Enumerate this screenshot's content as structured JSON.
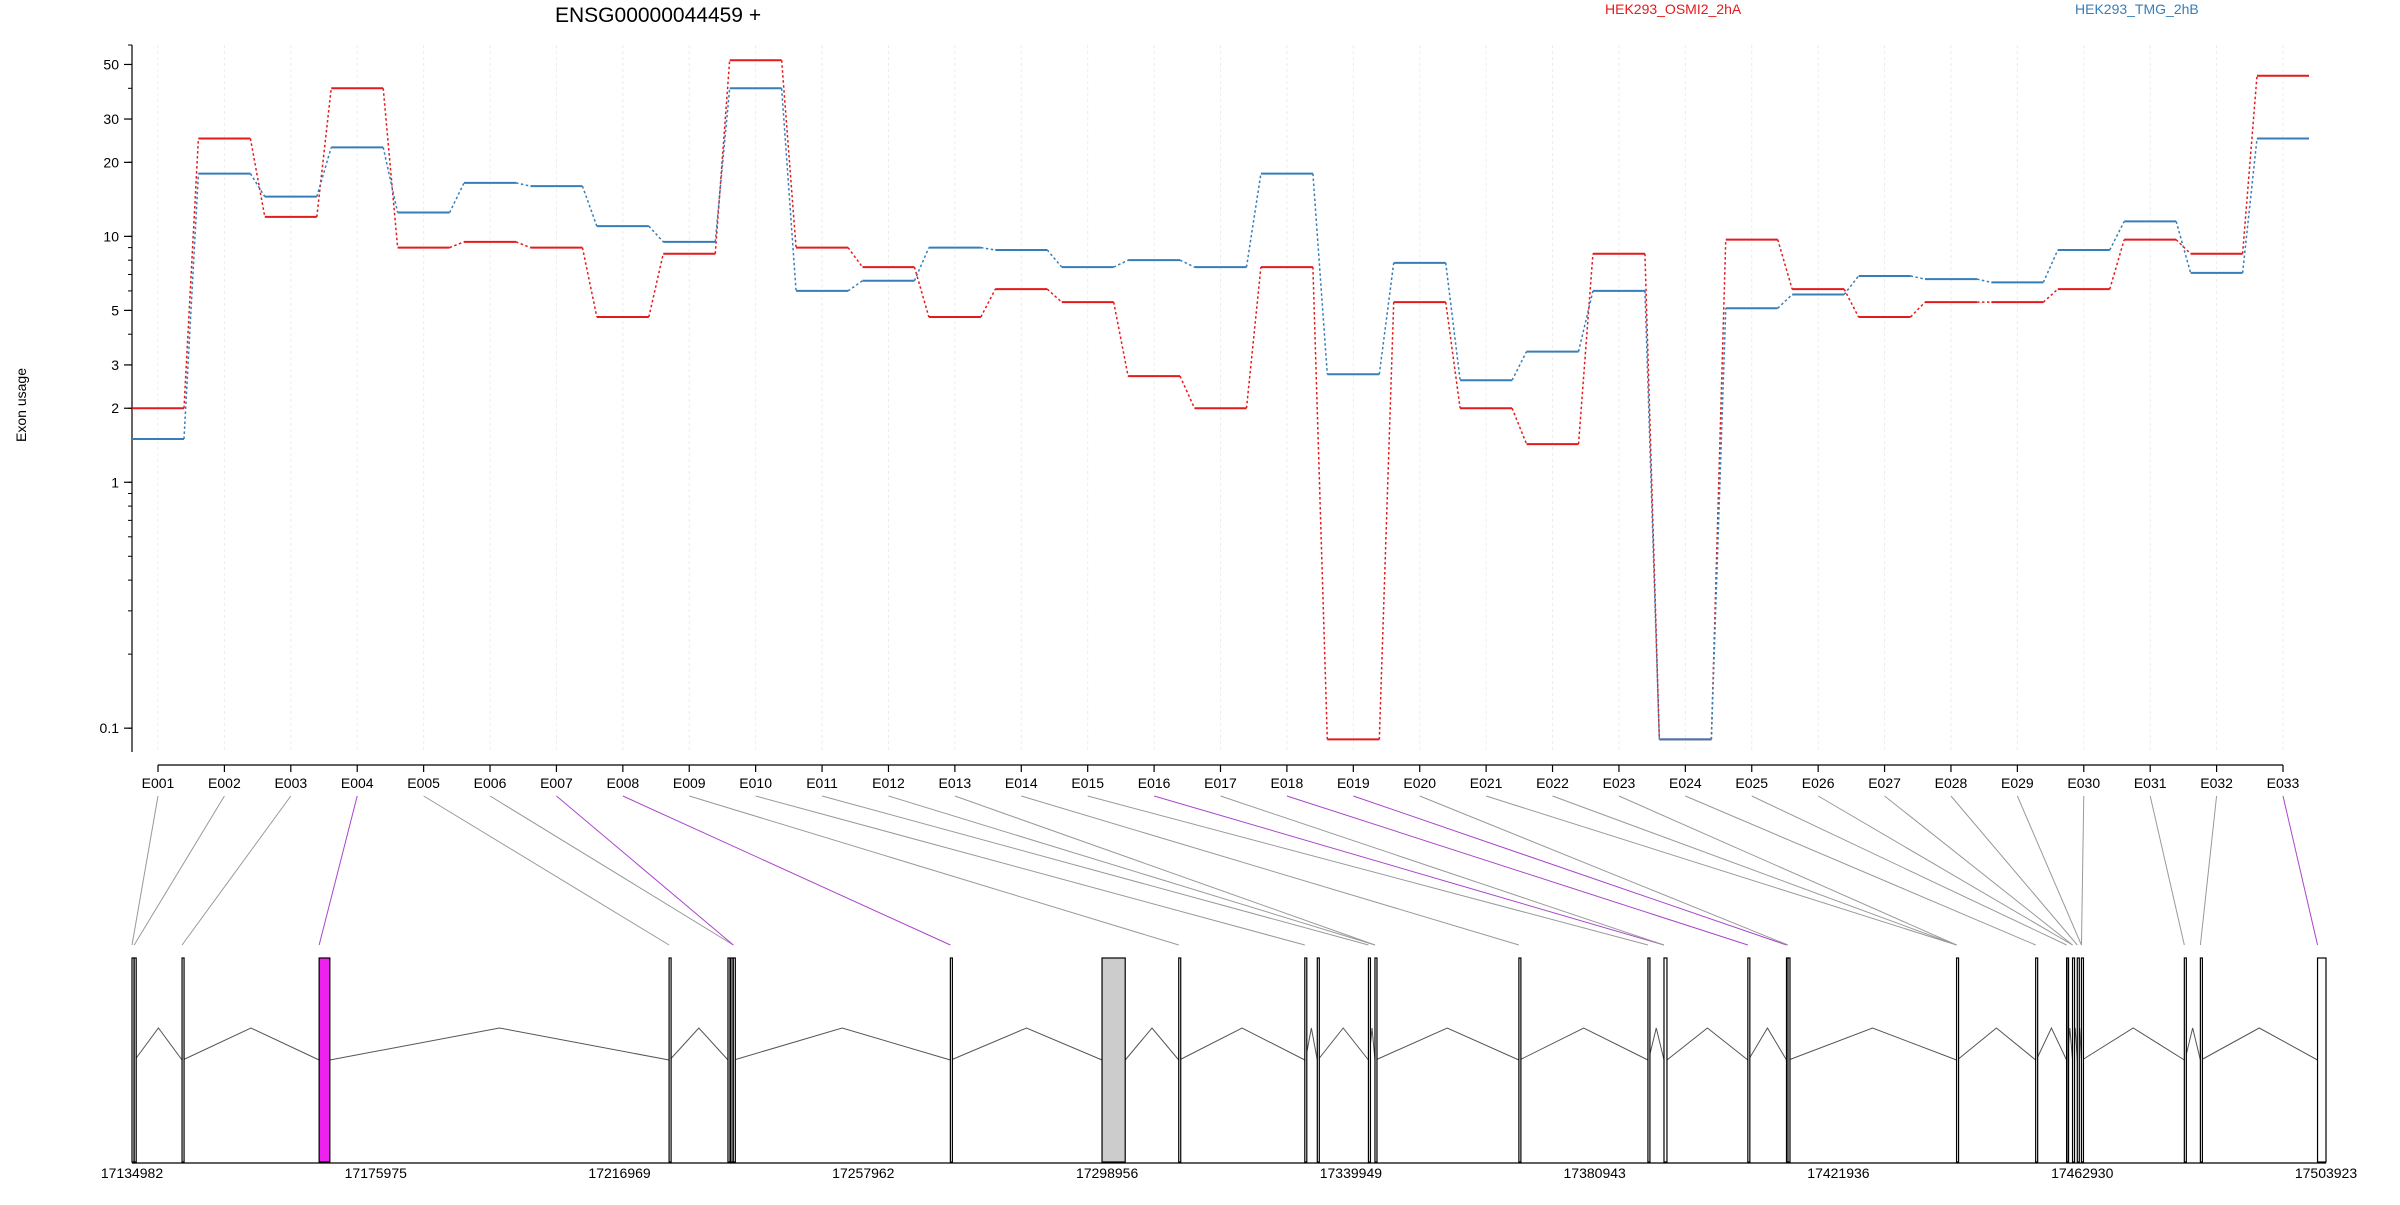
{
  "chart_data": {
    "type": "line",
    "title": "ENSG00000044459 +",
    "ylabel": "Exon usage",
    "xlabel": "",
    "y_scale": "log",
    "ylim": [
      0.08,
      60
    ],
    "y_ticks": [
      0.1,
      1,
      2,
      3,
      5,
      10,
      20,
      30,
      50
    ],
    "y_tick_labels": [
      "0.1",
      "1",
      "2",
      "3",
      "5",
      "10",
      "20",
      "30",
      "50"
    ],
    "categories": [
      "E001",
      "E002",
      "E003",
      "E004",
      "E005",
      "E006",
      "E007",
      "E008",
      "E009",
      "E010",
      "E011",
      "E012",
      "E013",
      "E014",
      "E015",
      "E016",
      "E017",
      "E018",
      "E019",
      "E020",
      "E021",
      "E022",
      "E023",
      "E024",
      "E025",
      "E026",
      "E027",
      "E028",
      "E029",
      "E030",
      "E031",
      "E032",
      "E033"
    ],
    "legend": "top-right",
    "grid": true,
    "series": [
      {
        "name": "HEK293_OSMI2_2hA",
        "color": "#e41a1c",
        "values": [
          2.0,
          25.0,
          12.0,
          40.0,
          9.0,
          9.5,
          9.0,
          4.7,
          8.5,
          52.0,
          9.0,
          7.5,
          4.7,
          6.1,
          5.4,
          2.7,
          2.0,
          7.5,
          0.09,
          5.4,
          2.0,
          1.43,
          8.5,
          0.09,
          9.7,
          6.1,
          4.7,
          5.4,
          5.4,
          6.1,
          9.7,
          8.5,
          45.0
        ]
      },
      {
        "name": "HEK293_TMG_2hB",
        "color": "#377eb8",
        "values": [
          1.5,
          18.0,
          14.5,
          23.0,
          12.5,
          16.5,
          16.0,
          11.0,
          9.5,
          40.0,
          6.0,
          6.6,
          9.0,
          8.8,
          7.5,
          8.0,
          7.5,
          18.0,
          2.75,
          7.8,
          2.6,
          3.4,
          6.0,
          0.09,
          5.1,
          5.8,
          6.9,
          6.7,
          6.5,
          8.8,
          11.5,
          7.1,
          25.0
        ]
      }
    ],
    "genomic_axis": {
      "tick_labels": [
        "17134982",
        "17175975",
        "17216969",
        "17257962",
        "17298956",
        "17339949",
        "17380943",
        "17421936",
        "17462930",
        "17503923"
      ],
      "range": [
        17134982,
        17503923
      ],
      "exon_starts": [
        17134982,
        17135350,
        17143400,
        17166450,
        17225300,
        17235200,
        17235700,
        17236100,
        17272600,
        17298100,
        17311000,
        17332200,
        17334300,
        17342900,
        17344000,
        17368200,
        17389900,
        17392600,
        17406700,
        17413200,
        17413450,
        17441800,
        17455100,
        17460300,
        17461300,
        17462100,
        17462800,
        17480100,
        17482800,
        17502500
      ],
      "exon_ends": [
        17135250,
        17135450,
        17143500,
        17168250,
        17225400,
        17235300,
        17235800,
        17236200,
        17272700,
        17302000,
        17311100,
        17332300,
        17334400,
        17343000,
        17344100,
        17368300,
        17390000,
        17393100,
        17406800,
        17413300,
        17413550,
        17441900,
        17455200,
        17460400,
        17461400,
        17462200,
        17462900,
        17480200,
        17482900,
        17503923
      ],
      "highlight_color": "#ee22ee",
      "highlight_exons": [
        3,
        23
      ],
      "gray_exons": [
        9
      ],
      "exon_connections": [
        0,
        1,
        2,
        3,
        4,
        7,
        7,
        8,
        10,
        11,
        13,
        14,
        14,
        15,
        16,
        17,
        17,
        18,
        19,
        20,
        21,
        21,
        21,
        22,
        23,
        24,
        24,
        25,
        26,
        26,
        27,
        28,
        29
      ],
      "highlight_connections": [
        3,
        6,
        7,
        15,
        17,
        18,
        32
      ]
    }
  }
}
